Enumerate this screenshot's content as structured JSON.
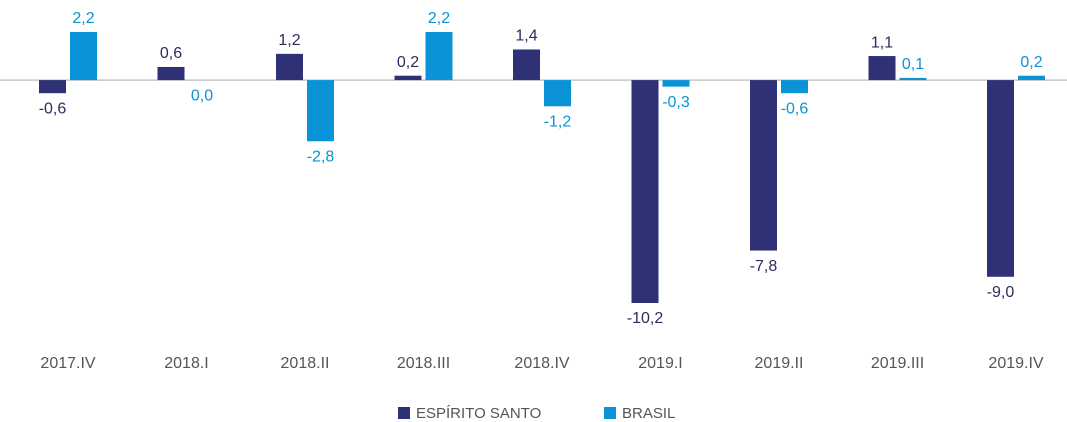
{
  "chart_data": {
    "type": "bar",
    "categories": [
      "2017.IV",
      "2018.I",
      "2018.II",
      "2018.III",
      "2018.IV",
      "2019.I",
      "2019.II",
      "2019.III",
      "2019.IV"
    ],
    "series": [
      {
        "name": "ESPÍRITO SANTO",
        "color": "#2e3176",
        "values": [
          -0.6,
          0.6,
          1.2,
          0.2,
          1.4,
          -10.2,
          -7.8,
          1.1,
          -9.0
        ],
        "value_labels": [
          "-0,6",
          "0,6",
          "1,2",
          "0,2",
          "1,4",
          "-10,2",
          "-7,8",
          "1,1",
          "-9,0"
        ]
      },
      {
        "name": "BRASIL",
        "color": "#0a93d6",
        "values": [
          2.2,
          0.0,
          -2.8,
          2.2,
          -1.2,
          -0.3,
          -0.6,
          0.1,
          0.2
        ],
        "value_labels": [
          "2,2",
          "0,0",
          "-2,8",
          "2,2",
          "-1,2",
          "-0,3",
          "-0,6",
          "0,1",
          "0,2"
        ]
      }
    ]
  }
}
